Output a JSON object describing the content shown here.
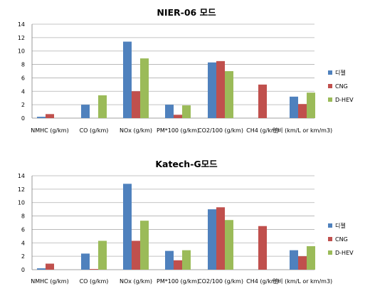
{
  "chart_data": [
    {
      "type": "bar",
      "title": "NIER-06 모드",
      "categories": [
        "NMHC (g/km)",
        "CO (g/km)",
        "NOx (g/km)",
        "PM*100 (g/km)",
        "CO2/100 (g/km)",
        "CH4 (g/km)",
        "연비 (km/L or km/m3)"
      ],
      "ylim": [
        0,
        14
      ],
      "yticks": [
        0,
        2,
        4,
        6,
        8,
        10,
        12,
        14
      ],
      "grid": true,
      "legend_position": "right",
      "series": [
        {
          "name": "디젤",
          "color": "#4f81bd",
          "values": [
            0.2,
            2.0,
            11.4,
            2.0,
            8.3,
            0,
            3.2
          ]
        },
        {
          "name": "CNG",
          "color": "#c0504d",
          "values": [
            0.6,
            0,
            4.0,
            0.5,
            8.5,
            5.0,
            2.1
          ]
        },
        {
          "name": "D-HEV",
          "color": "#9bbb59",
          "values": [
            0,
            3.4,
            8.9,
            1.9,
            7.0,
            0,
            3.8
          ]
        }
      ]
    },
    {
      "type": "bar",
      "title": "Katech-G모드",
      "categories": [
        "NMHC (g/km)",
        "CO (g/km)",
        "NOx (g/km)",
        "PM*100 (g/km)",
        "CO2/100 (g/km)",
        "CH4 (g/km)",
        "연비 (km/L or km/m3)"
      ],
      "ylim": [
        0,
        14
      ],
      "yticks": [
        0,
        2,
        4,
        6,
        8,
        10,
        12,
        14
      ],
      "grid": true,
      "legend_position": "right",
      "series": [
        {
          "name": "디젤",
          "color": "#4f81bd",
          "values": [
            0.2,
            2.4,
            12.8,
            2.8,
            9.0,
            0,
            2.9
          ]
        },
        {
          "name": "CNG",
          "color": "#c0504d",
          "values": [
            0.9,
            0.1,
            4.3,
            1.4,
            9.3,
            6.5,
            2.0
          ]
        },
        {
          "name": "D-HEV",
          "color": "#9bbb59",
          "values": [
            0,
            4.3,
            7.3,
            2.9,
            7.4,
            0,
            3.5
          ]
        }
      ]
    }
  ]
}
